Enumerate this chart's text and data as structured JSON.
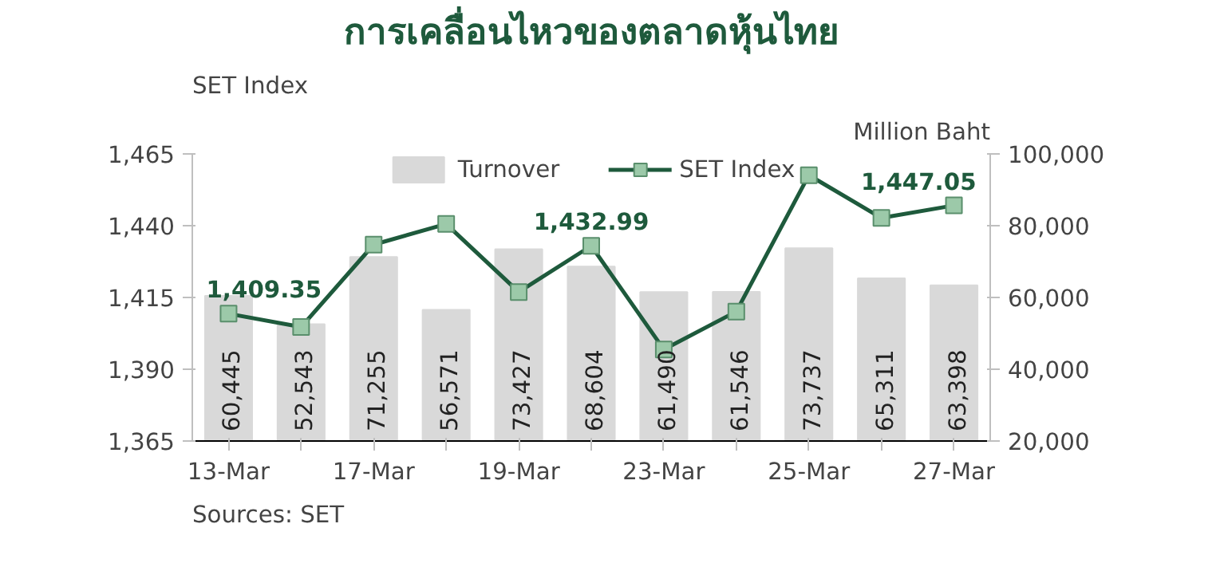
{
  "chart_data": {
    "type": "bar",
    "title": "การเคลื่อนไหวของตลาดหุ้นไทย",
    "ylabel": "SET Index",
    "y2label": "Million Baht",
    "categories": [
      "13-Mar",
      null,
      "17-Mar",
      null,
      "19-Mar",
      null,
      "23-Mar",
      null,
      "25-Mar",
      null,
      "27-Mar"
    ],
    "series": [
      {
        "name": "Turnover",
        "axis": "y2",
        "color": "#d9d9d9",
        "values": [
          60445,
          52543,
          71255,
          56571,
          73427,
          68604,
          61490,
          61546,
          73737,
          65311,
          63398
        ],
        "value_labels": [
          "60,445",
          "52,543",
          "71,255",
          "56,571",
          "73,427",
          "68,604",
          "61,490",
          "61,546",
          "73,737",
          "65,311",
          "63,398"
        ]
      },
      {
        "name": "SET Index",
        "type": "line",
        "color": "#1e5a3c",
        "marker": "square",
        "values": [
          1409.35,
          1404.7,
          1433.4,
          1440.6,
          1416.9,
          1432.99,
          1396.9,
          1410.1,
          1457.6,
          1442.7,
          1447.05
        ],
        "value_labels": [
          "1,409.35",
          null,
          null,
          null,
          null,
          "1,432.99",
          null,
          null,
          null,
          null,
          "1,447.05"
        ]
      }
    ],
    "ylim": [
      1365,
      1465
    ],
    "yticks": [
      {
        "value": 1365,
        "label": "1,365"
      },
      {
        "value": 1390,
        "label": "1,390"
      },
      {
        "value": 1415,
        "label": "1,415"
      },
      {
        "value": 1440,
        "label": "1,440"
      },
      {
        "value": 1465,
        "label": "1,465"
      }
    ],
    "y2lim": [
      20000,
      100000
    ],
    "y2ticks": [
      {
        "value": 20000,
        "label": "20,000"
      },
      {
        "value": 40000,
        "label": "40,000"
      },
      {
        "value": 60000,
        "label": "60,000"
      },
      {
        "value": 80000,
        "label": "80,000"
      },
      {
        "value": 100000,
        "label": "100,000"
      }
    ],
    "grid": false,
    "legend": "top",
    "annotations": [
      "Sources: SET"
    ]
  }
}
